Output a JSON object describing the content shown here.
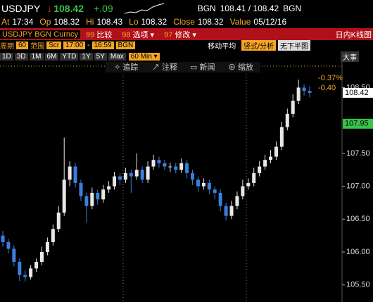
{
  "header": {
    "ticker": "USDJPY",
    "last": "108.42",
    "change": "+.09",
    "quote_src": "BGN",
    "bid_ask": "108.41 / 108.42",
    "quote_src2": "BGN",
    "fields": [
      {
        "label": "At",
        "value": "17:34"
      },
      {
        "label": "Op",
        "value": "108.32"
      },
      {
        "label": "Hi",
        "value": "108.43"
      },
      {
        "label": "Lo",
        "value": "108.32"
      },
      {
        "label": "Close",
        "value": "108.32"
      },
      {
        "label": "Value",
        "value": "05/12/16"
      }
    ],
    "security": "USDJPY BGN Curncy",
    "menu": [
      {
        "num": "99",
        "text": "比较"
      },
      {
        "num": "98",
        "text": "选项 ▾"
      },
      {
        "num": "97",
        "text": "修改 ▾"
      }
    ],
    "chart_kind": "日内K线图",
    "row4": {
      "period_label": "周期",
      "period": "60",
      "range_label": "范围",
      "range": "Scr",
      "from": "17:00",
      "to": "16:59",
      "src": "BGN",
      "ma": "移动平均",
      "analysis": "竖式/分析",
      "lower": "无下半图"
    },
    "ranges": [
      "1D",
      "3D",
      "1M",
      "6M",
      "YTD",
      "1Y",
      "5Y",
      "Max"
    ],
    "interval": "60 Min ▾",
    "events": "大事",
    "tools": [
      "✧ 追踪",
      "↗ 注释",
      "▭ 新闻",
      "⊕ 缩放"
    ]
  },
  "chart_data": {
    "type": "candlestick",
    "ylim": [
      105.24,
      108.89
    ],
    "yticks": [
      {
        "value": 105.5,
        "label": "105.50"
      },
      {
        "value": 106,
        "label": "106.00"
      },
      {
        "value": 106.5,
        "label": "106.50"
      },
      {
        "value": 107,
        "label": "107.00"
      },
      {
        "value": 107.5,
        "label": "107.50"
      },
      {
        "value": 108.5,
        "label": "108.50"
      }
    ],
    "up_color": "#e8e8e8",
    "down_color": "#3a7fdc",
    "open": [
      106.25,
      106.15,
      106.05,
      105.85,
      105.65,
      105.62,
      105.75,
      105.85,
      106.0,
      106.15,
      106.35,
      106.6,
      107.1,
      107.3,
      107.05,
      106.85,
      106.7,
      106.9,
      106.8,
      106.95,
      107.0,
      107.15,
      107.1,
      107.2,
      107.15,
      107.25,
      107.1,
      107.3,
      107.4,
      107.35,
      107.3,
      107.3,
      107.25,
      107.35,
      107.2,
      107.1,
      107.0,
      107.05,
      106.95,
      106.9,
      106.7,
      106.55,
      106.7,
      106.85,
      107.0,
      107.05,
      107.2,
      107.3,
      107.4,
      107.45,
      107.6,
      107.9,
      108.1,
      108.3,
      108.5,
      108.45
    ],
    "high": [
      106.32,
      106.2,
      106.1,
      105.9,
      105.72,
      105.8,
      105.9,
      106.08,
      106.22,
      106.42,
      106.7,
      107.74,
      107.38,
      107.35,
      107.1,
      106.9,
      106.98,
      106.95,
      107.02,
      107.08,
      107.22,
      107.2,
      107.28,
      107.25,
      107.5,
      107.3,
      107.38,
      107.48,
      107.45,
      107.4,
      107.36,
      107.35,
      107.42,
      107.4,
      107.25,
      107.15,
      107.12,
      107.1,
      107.0,
      106.95,
      106.75,
      106.78,
      106.92,
      107.1,
      107.12,
      107.28,
      107.38,
      107.48,
      107.55,
      107.68,
      107.98,
      108.18,
      108.4,
      108.62,
      108.55,
      108.52
    ],
    "low": [
      106.08,
      105.98,
      105.78,
      105.56,
      105.55,
      105.58,
      105.7,
      105.8,
      105.95,
      106.1,
      106.3,
      106.55,
      107.0,
      106.98,
      106.78,
      106.45,
      106.65,
      106.72,
      106.75,
      106.9,
      106.95,
      107.02,
      107.05,
      106.9,
      107.1,
      107.05,
      107.05,
      107.25,
      107.28,
      107.25,
      107.22,
      107.2,
      107.2,
      107.12,
      107.02,
      106.92,
      106.95,
      106.88,
      106.8,
      106.62,
      106.48,
      106.5,
      106.65,
      106.8,
      106.95,
      107.0,
      107.15,
      107.25,
      107.35,
      107.4,
      107.55,
      107.85,
      108.05,
      108.25,
      108.38,
      108.35
    ],
    "close": [
      106.15,
      106.05,
      105.85,
      105.65,
      105.62,
      105.75,
      105.85,
      106.0,
      106.15,
      106.35,
      106.6,
      107.1,
      107.3,
      107.05,
      106.85,
      106.7,
      106.9,
      106.8,
      106.95,
      107.0,
      107.15,
      107.1,
      107.2,
      107.15,
      107.25,
      107.1,
      107.3,
      107.4,
      107.35,
      107.3,
      107.3,
      107.25,
      107.35,
      107.2,
      107.1,
      107.0,
      107.05,
      106.95,
      106.9,
      106.7,
      106.55,
      106.7,
      106.85,
      107.0,
      107.05,
      107.2,
      107.3,
      107.4,
      107.45,
      107.6,
      107.9,
      108.1,
      108.3,
      108.5,
      108.45,
      108.42
    ],
    "price_labels": [
      {
        "value": 108.42,
        "label": "108.42",
        "color": "#ffffff"
      },
      {
        "value": 107.95,
        "label": "107.95",
        "color": "#39c24a"
      }
    ],
    "change_labels": [
      "-0.37%",
      "-0.40"
    ]
  }
}
